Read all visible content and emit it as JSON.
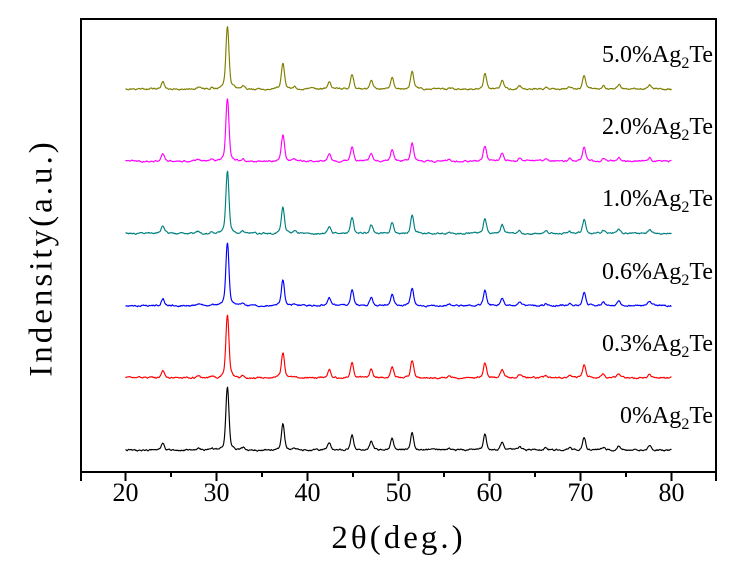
{
  "chart_data": {
    "type": "line",
    "title": "",
    "xlabel": "2θ(deg.)",
    "ylabel": "Indensity(a.u.)",
    "legend_position": "right-inline",
    "grid": false,
    "x_axis": {
      "range": [
        15,
        85
      ],
      "major_ticks": [
        20,
        30,
        40,
        50,
        60,
        70,
        80
      ],
      "minor_ticks": [
        25,
        35,
        45,
        55,
        65,
        75
      ],
      "edge_ticks": [
        15,
        85
      ],
      "tick_labels": [
        "20",
        "30",
        "40",
        "50",
        "60",
        "70",
        "80"
      ]
    },
    "y_axis": {
      "units": "a.u.",
      "tick_labels": []
    },
    "data_x_range": [
      20,
      80
    ],
    "peaks_two_theta": [
      24.1,
      28.0,
      29.5,
      31.2,
      32.9,
      37.3,
      38.6,
      42.4,
      44.9,
      47.0,
      49.3,
      51.5,
      55.6,
      59.5,
      61.4,
      63.3,
      66.2,
      68.8,
      70.4,
      72.5,
      74.2,
      77.6
    ],
    "peaks_rel_intensity": [
      12,
      3,
      3,
      100,
      4,
      41,
      3,
      12,
      24,
      13,
      18,
      28,
      2,
      24,
      13,
      5,
      3,
      4,
      21,
      5,
      7,
      6
    ],
    "series": [
      {
        "name": "0%Ag2Te",
        "label_prefix": "0%Ag",
        "label_sub": "2",
        "label_suffix": "Te",
        "color": "#000000",
        "stack_index": 0
      },
      {
        "name": "0.3%Ag2Te",
        "label_prefix": "0.3%Ag",
        "label_sub": "2",
        "label_suffix": "Te",
        "color": "#ff0000",
        "stack_index": 1
      },
      {
        "name": "0.6%Ag2Te",
        "label_prefix": "0.6%Ag",
        "label_sub": "2",
        "label_suffix": "Te",
        "color": "#0000ff",
        "stack_index": 2
      },
      {
        "name": "1.0%Ag2Te",
        "label_prefix": "1.0%Ag",
        "label_sub": "2",
        "label_suffix": "Te",
        "color": "#008080",
        "stack_index": 3
      },
      {
        "name": "2.0%Ag2Te",
        "label_prefix": "2.0%Ag",
        "label_sub": "2",
        "label_suffix": "Te",
        "color": "#ff00ff",
        "stack_index": 4
      },
      {
        "name": "5.0%Ag2Te",
        "label_prefix": "5.0%Ag",
        "label_sub": "2",
        "label_suffix": "Te",
        "color": "#7f7f00",
        "stack_index": 5
      }
    ],
    "colors": {
      "frame": "#000000",
      "background": "#ffffff"
    }
  }
}
